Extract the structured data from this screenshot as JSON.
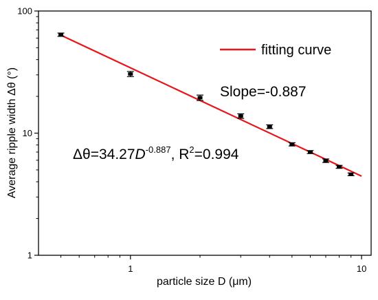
{
  "chart_data": {
    "type": "scatter",
    "x_scale": "log",
    "y_scale": "log",
    "xlabel": "particle size D (μm)",
    "ylabel": "Average ripple width Δθ (°)",
    "xlim": [
      0.4,
      11
    ],
    "ylim": [
      1,
      100
    ],
    "x_ticks": [
      {
        "value": 1,
        "label": "1"
      },
      {
        "value": 10,
        "label": "10"
      }
    ],
    "y_ticks": [
      {
        "value": 1,
        "label": "1"
      },
      {
        "value": 10,
        "label": "10"
      },
      {
        "value": 100,
        "label": "100"
      }
    ],
    "series": [
      {
        "color": "#000000",
        "points": [
          {
            "x": 0.5,
            "y": 64,
            "err": 2
          },
          {
            "x": 1,
            "y": 30.5,
            "err": 1.5
          },
          {
            "x": 2,
            "y": 19.5,
            "err": 1.0
          },
          {
            "x": 3,
            "y": 13.8,
            "err": 0.6
          },
          {
            "x": 4,
            "y": 11.3,
            "err": 0.4
          },
          {
            "x": 5,
            "y": 8.1,
            "err": 0.25
          },
          {
            "x": 6,
            "y": 7.0,
            "err": 0.2
          },
          {
            "x": 7,
            "y": 5.95,
            "err": 0.2
          },
          {
            "x": 8,
            "y": 5.3,
            "err": 0.15
          },
          {
            "x": 9,
            "y": 4.6,
            "err": 0.12
          }
        ]
      },
      {
        "name": "fitting curve",
        "color": "#e8161b",
        "fit": {
          "a": 34.27,
          "b": -0.887,
          "x_from": 0.5,
          "x_to": 10
        }
      }
    ],
    "legend": {
      "position": "top-right",
      "label": "fitting curve"
    },
    "annotations": {
      "slope": "Slope=-0.887",
      "equation_prefix": "Δθ=34.27",
      "equation_var": "D",
      "equation_exp": "-0.887",
      "equation_r": ", R",
      "equation_r_exp": "2",
      "equation_r_val": "=0.994"
    },
    "grid": false
  }
}
